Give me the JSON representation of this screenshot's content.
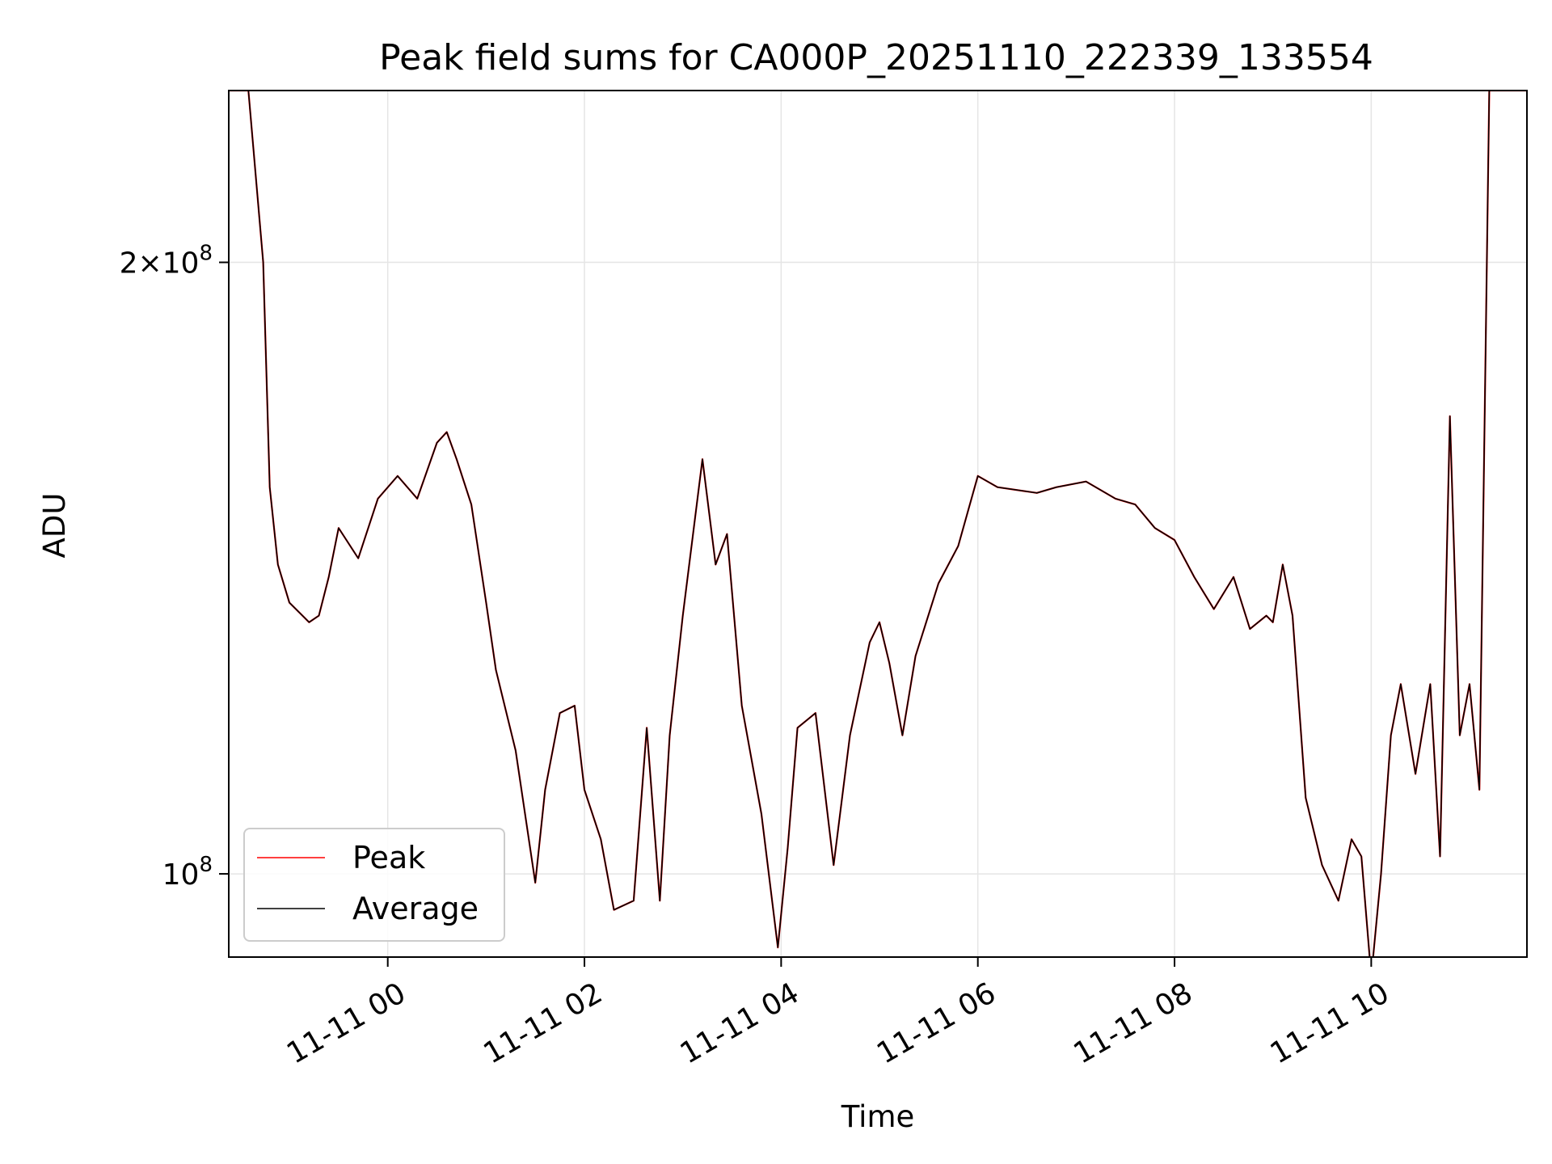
{
  "chart_data": {
    "type": "line",
    "title": "Peak field sums for CA000P_20251110_222339_133554",
    "xlabel": "Time",
    "ylabel": "ADU",
    "yscale": "log",
    "xlim": [
      "2025-11-10 22:23",
      "2025-11-11 11:35"
    ],
    "ylim": [
      91000000,
      243000000
    ],
    "grid": true,
    "legend_position": "lower-left",
    "x_ticks": [
      {
        "value": "2025-11-11 00:00",
        "label": "11-11 00"
      },
      {
        "value": "2025-11-11 02:00",
        "label": "11-11 02"
      },
      {
        "value": "2025-11-11 04:00",
        "label": "11-11 04"
      },
      {
        "value": "2025-11-11 06:00",
        "label": "11-11 06"
      },
      {
        "value": "2025-11-11 08:00",
        "label": "11-11 08"
      },
      {
        "value": "2025-11-11 10:00",
        "label": "11-11 10"
      }
    ],
    "y_ticks": [
      {
        "value": 100000000,
        "mantissa": "",
        "exponent": "8"
      },
      {
        "value": 200000000,
        "mantissa": "2",
        "exponent": "8"
      }
    ],
    "x": [
      "2025-11-10 22:23",
      "2025-11-10 22:35",
      "2025-11-10 22:44",
      "2025-11-10 22:48",
      "2025-11-10 22:53",
      "2025-11-10 23:00",
      "2025-11-10 23:12",
      "2025-11-10 23:18",
      "2025-11-10 23:24",
      "2025-11-10 23:30",
      "2025-11-10 23:42",
      "2025-11-10 23:54",
      "2025-11-11 00:06",
      "2025-11-11 00:18",
      "2025-11-11 00:30",
      "2025-11-11 00:36",
      "2025-11-11 00:42",
      "2025-11-11 00:51",
      "2025-11-11 01:00",
      "2025-11-11 01:06",
      "2025-11-11 01:18",
      "2025-11-11 01:30",
      "2025-11-11 01:36",
      "2025-11-11 01:45",
      "2025-11-11 01:54",
      "2025-11-11 02:00",
      "2025-11-11 02:10",
      "2025-11-11 02:18",
      "2025-11-11 02:30",
      "2025-11-11 02:38",
      "2025-11-11 02:46",
      "2025-11-11 02:52",
      "2025-11-11 03:00",
      "2025-11-11 03:12",
      "2025-11-11 03:20",
      "2025-11-11 03:27",
      "2025-11-11 03:36",
      "2025-11-11 03:48",
      "2025-11-11 03:58",
      "2025-11-11 04:04",
      "2025-11-11 04:10",
      "2025-11-11 04:21",
      "2025-11-11 04:32",
      "2025-11-11 04:42",
      "2025-11-11 04:54",
      "2025-11-11 05:00",
      "2025-11-11 05:06",
      "2025-11-11 05:14",
      "2025-11-11 05:22",
      "2025-11-11 05:36",
      "2025-11-11 05:48",
      "2025-11-11 06:00",
      "2025-11-11 06:12",
      "2025-11-11 06:36",
      "2025-11-11 06:48",
      "2025-11-11 07:06",
      "2025-11-11 07:24",
      "2025-11-11 07:36",
      "2025-11-11 07:48",
      "2025-11-11 08:00",
      "2025-11-11 08:12",
      "2025-11-11 08:24",
      "2025-11-11 08:36",
      "2025-11-11 08:46",
      "2025-11-11 08:56",
      "2025-11-11 09:00",
      "2025-11-11 09:06",
      "2025-11-11 09:12",
      "2025-11-11 09:20",
      "2025-11-11 09:30",
      "2025-11-11 09:40",
      "2025-11-11 09:48",
      "2025-11-11 09:54",
      "2025-11-11 10:00",
      "2025-11-11 10:06",
      "2025-11-11 10:12",
      "2025-11-11 10:18",
      "2025-11-11 10:27",
      "2025-11-11 10:36",
      "2025-11-11 10:42",
      "2025-11-11 10:48",
      "2025-11-11 10:54",
      "2025-11-11 11:00",
      "2025-11-11 11:06",
      "2025-11-11 11:12",
      "2025-11-11 11:18",
      "2025-11-11 11:24",
      "2025-11-11 11:35"
    ],
    "series": [
      {
        "name": "Peak",
        "color": "#ff0000",
        "values": [
          243000000,
          243000000,
          200000000,
          155000000,
          142000000,
          136000000,
          133000000,
          134000000,
          140000000,
          148000000,
          143000000,
          153000000,
          157000000,
          153000000,
          163000000,
          165000000,
          160000000,
          152000000,
          136000000,
          126000000,
          115000000,
          99000000,
          110000000,
          120000000,
          121000000,
          110000000,
          104000000,
          96000000,
          97000000,
          118000000,
          97000000,
          117000000,
          134000000,
          160000000,
          142000000,
          147000000,
          121000000,
          107000000,
          92000000,
          103000000,
          118000000,
          120000000,
          101000000,
          117000000,
          130000000,
          133000000,
          127000000,
          117000000,
          128000000,
          139000000,
          145000000,
          157000000,
          155000000,
          154000000,
          155000000,
          156000000,
          153000000,
          152000000,
          148000000,
          146000000,
          140000000,
          135000000,
          140000000,
          132000000,
          134000000,
          133000000,
          142000000,
          134000000,
          109000000,
          101000000,
          97000000,
          104000000,
          102000000,
          89000000,
          100000000,
          117000000,
          124000000,
          112000000,
          124000000,
          102000000,
          168000000,
          117000000,
          124000000,
          110000000,
          243000000,
          243000000,
          243000000,
          243000000
        ]
      },
      {
        "name": "Average",
        "color": "#000000",
        "values": [
          243000000,
          243000000,
          200000000,
          155000000,
          142000000,
          136000000,
          133000000,
          134000000,
          140000000,
          148000000,
          143000000,
          153000000,
          157000000,
          153000000,
          163000000,
          165000000,
          160000000,
          152000000,
          136000000,
          126000000,
          115000000,
          99000000,
          110000000,
          120000000,
          121000000,
          110000000,
          104000000,
          96000000,
          97000000,
          118000000,
          97000000,
          117000000,
          134000000,
          160000000,
          142000000,
          147000000,
          121000000,
          107000000,
          92000000,
          103000000,
          118000000,
          120000000,
          101000000,
          117000000,
          130000000,
          133000000,
          127000000,
          117000000,
          128000000,
          139000000,
          145000000,
          157000000,
          155000000,
          154000000,
          155000000,
          156000000,
          153000000,
          152000000,
          148000000,
          146000000,
          140000000,
          135000000,
          140000000,
          132000000,
          134000000,
          133000000,
          142000000,
          134000000,
          109000000,
          101000000,
          97000000,
          104000000,
          102000000,
          89000000,
          100000000,
          117000000,
          124000000,
          112000000,
          124000000,
          102000000,
          168000000,
          117000000,
          124000000,
          110000000,
          243000000,
          243000000,
          243000000,
          243000000
        ]
      }
    ]
  }
}
